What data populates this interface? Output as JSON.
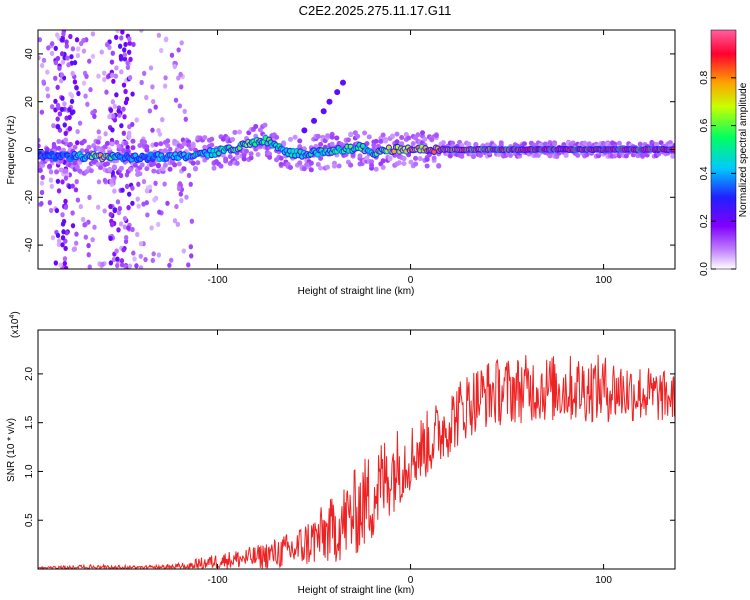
{
  "title": "C2E2.2025.275.11.17.G11",
  "chart_data": [
    {
      "type": "heatmap",
      "description_free": true,
      "xlabel": "Height of straight line (km)",
      "ylabel": "Frequency (Hz)",
      "xlim": [
        -193,
        137
      ],
      "ylim": [
        -50,
        50
      ],
      "x_ticks": [
        -100,
        0,
        100
      ],
      "y_ticks": [
        -40,
        -20,
        0,
        20,
        40
      ],
      "colorbar": {
        "label": "Normalized spectral amplitude",
        "range": [
          0,
          1
        ],
        "ticks": [
          0.0,
          0.2,
          0.4,
          0.6,
          0.8
        ],
        "colors": [
          "#ffffff",
          "#b000ff",
          "#2020ff",
          "#00d8ff",
          "#00ff40",
          "#e8ff00",
          "#ff8000",
          "#ff0040",
          "#ff80c0"
        ]
      },
      "main_band": [
        {
          "x": -193,
          "freq": -2.5,
          "amp": 0.35
        },
        {
          "x": -180,
          "freq": -3,
          "amp": 0.3
        },
        {
          "x": -170,
          "freq": -3,
          "amp": 0.45
        },
        {
          "x": -160,
          "freq": -3,
          "amp": 0.75
        },
        {
          "x": -150,
          "freq": -3.5,
          "amp": 0.4
        },
        {
          "x": -140,
          "freq": -3.5,
          "amp": 0.35
        },
        {
          "x": -130,
          "freq": -3,
          "amp": 0.4
        },
        {
          "x": -120,
          "freq": -3,
          "amp": 0.45
        },
        {
          "x": -110,
          "freq": -2,
          "amp": 0.45
        },
        {
          "x": -100,
          "freq": -1,
          "amp": 0.5
        },
        {
          "x": -90,
          "freq": 1,
          "amp": 0.6
        },
        {
          "x": -80,
          "freq": 3,
          "amp": 0.6
        },
        {
          "x": -75,
          "freq": 4,
          "amp": 0.55
        },
        {
          "x": -65,
          "freq": -1,
          "amp": 0.45
        },
        {
          "x": -55,
          "freq": -2,
          "amp": 0.5
        },
        {
          "x": -45,
          "freq": -1,
          "amp": 0.5
        },
        {
          "x": -35,
          "freq": 0,
          "amp": 0.55
        },
        {
          "x": -25,
          "freq": 1,
          "amp": 0.55
        },
        {
          "x": -20,
          "freq": -2,
          "amp": 0.5
        },
        {
          "x": -10,
          "freq": 0,
          "amp": 0.7
        },
        {
          "x": 0,
          "freq": 0,
          "amp": 0.75
        },
        {
          "x": 15,
          "freq": 0,
          "amp": 0.8
        },
        {
          "x": 30,
          "freq": 0,
          "amp": 0.8
        },
        {
          "x": 45,
          "freq": 0,
          "amp": 0.85
        },
        {
          "x": 60,
          "freq": 0,
          "amp": 0.9
        },
        {
          "x": 80,
          "freq": 0,
          "amp": 0.9
        },
        {
          "x": 100,
          "freq": 0,
          "amp": 0.9
        },
        {
          "x": 120,
          "freq": 0,
          "amp": 0.9
        },
        {
          "x": 137,
          "freq": 0,
          "amp": 0.9
        }
      ],
      "diagonal_feature": [
        {
          "x": -55,
          "freq": 8
        },
        {
          "x": -50,
          "freq": 12
        },
        {
          "x": -45,
          "freq": 16
        },
        {
          "x": -42,
          "freq": 20
        },
        {
          "x": -38,
          "freq": 24
        },
        {
          "x": -35,
          "freq": 28
        }
      ]
    },
    {
      "type": "line",
      "xlabel": "Height of straight line (km)",
      "ylabel": "SNR (10 * v/v)",
      "y_multiplier": "(x10^4)",
      "xlim": [
        -193,
        137
      ],
      "ylim": [
        0,
        2.45
      ],
      "x_ticks": [
        -100,
        0,
        100
      ],
      "y_ticks": [
        0.5,
        1.0,
        1.5,
        2.0
      ],
      "series": [
        {
          "name": "SNR",
          "color": "#ee2222",
          "envelope": [
            {
              "x": -193,
              "base": 0.01,
              "noise": 0.01
            },
            {
              "x": -160,
              "base": 0.02,
              "noise": 0.03
            },
            {
              "x": -140,
              "base": 0.01,
              "noise": 0.02
            },
            {
              "x": -120,
              "base": 0.02,
              "noise": 0.04
            },
            {
              "x": -100,
              "base": 0.08,
              "noise": 0.08
            },
            {
              "x": -80,
              "base": 0.12,
              "noise": 0.12
            },
            {
              "x": -60,
              "base": 0.2,
              "noise": 0.2
            },
            {
              "x": -40,
              "base": 0.4,
              "noise": 0.35
            },
            {
              "x": -30,
              "base": 0.55,
              "noise": 0.45
            },
            {
              "x": -20,
              "base": 0.75,
              "noise": 0.5
            },
            {
              "x": -10,
              "base": 1.0,
              "noise": 0.45
            },
            {
              "x": 0,
              "base": 1.15,
              "noise": 0.35
            },
            {
              "x": 10,
              "base": 1.3,
              "noise": 0.35
            },
            {
              "x": 20,
              "base": 1.5,
              "noise": 0.35
            },
            {
              "x": 30,
              "base": 1.7,
              "noise": 0.35
            },
            {
              "x": 40,
              "base": 1.8,
              "noise": 0.35
            },
            {
              "x": 60,
              "base": 1.85,
              "noise": 0.35
            },
            {
              "x": 80,
              "base": 1.85,
              "noise": 0.35
            },
            {
              "x": 100,
              "base": 1.85,
              "noise": 0.35
            },
            {
              "x": 120,
              "base": 1.8,
              "noise": 0.3
            },
            {
              "x": 137,
              "base": 1.75,
              "noise": 0.25
            }
          ]
        }
      ]
    }
  ]
}
